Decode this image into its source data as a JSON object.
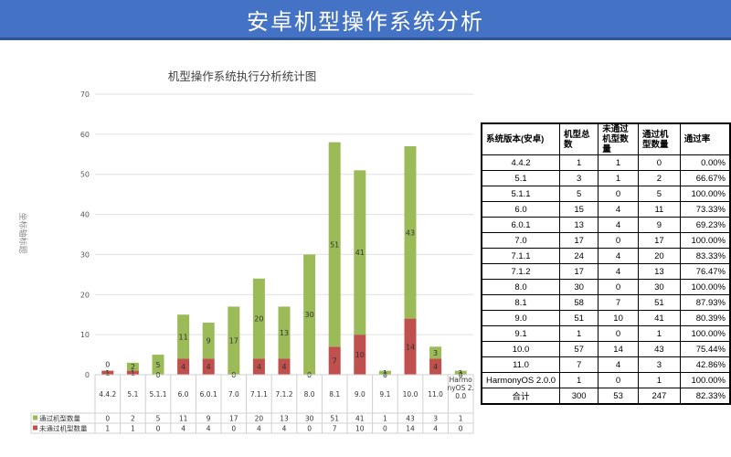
{
  "page": {
    "title": "安卓机型操作系统分析"
  },
  "chart_data": {
    "type": "bar",
    "stacked": true,
    "title": "机型操作系统执行分析统计图",
    "ylabel": "坐标轴标题",
    "xlabel": "",
    "ylim": [
      0,
      70
    ],
    "yticks": [
      0,
      10,
      20,
      30,
      40,
      50,
      60,
      70
    ],
    "grid": true,
    "categories": [
      "4.4.2",
      "5.1",
      "5.1.1",
      "6.0",
      "6.0.1",
      "7.0",
      "7.1.1",
      "7.1.2",
      "8.0",
      "8.1",
      "9.0",
      "9.1",
      "10.0",
      "11.0",
      "HarmonyOS 2.0.0"
    ],
    "category_labels": [
      "4.4.2",
      "5.1",
      "5.1.1",
      "6.0",
      "6.0.1",
      "7.0",
      "7.1.1",
      "7.1.2",
      "8.0",
      "8.1",
      "9.0",
      "9.1",
      "10.0",
      "11.0",
      "HarmonyOS 2.0.0"
    ],
    "series": [
      {
        "name": "未通过机型数量",
        "color": "#c0504d",
        "values": [
          1,
          1,
          0,
          4,
          4,
          0,
          4,
          4,
          0,
          7,
          10,
          0,
          14,
          4,
          0
        ]
      },
      {
        "name": "通过机型数量",
        "color": "#9bbb59",
        "values": [
          0,
          2,
          5,
          11,
          9,
          17,
          20,
          13,
          30,
          51,
          41,
          1,
          43,
          3,
          1
        ]
      }
    ]
  },
  "table": {
    "headers": [
      "系统版本(安卓)",
      "机型总数",
      "未通过机型数量",
      "通过机型数量",
      "通过率"
    ],
    "rows": [
      [
        "4.4.2",
        "1",
        "1",
        "0",
        "0.00%"
      ],
      [
        "5.1",
        "3",
        "1",
        "2",
        "66.67%"
      ],
      [
        "5.1.1",
        "5",
        "0",
        "5",
        "100.00%"
      ],
      [
        "6.0",
        "15",
        "4",
        "11",
        "73.33%"
      ],
      [
        "6.0.1",
        "13",
        "4",
        "9",
        "69.23%"
      ],
      [
        "7.0",
        "17",
        "0",
        "17",
        "100.00%"
      ],
      [
        "7.1.1",
        "24",
        "4",
        "20",
        "83.33%"
      ],
      [
        "7.1.2",
        "17",
        "4",
        "13",
        "76.47%"
      ],
      [
        "8.0",
        "30",
        "0",
        "30",
        "100.00%"
      ],
      [
        "8.1",
        "58",
        "7",
        "51",
        "87.93%"
      ],
      [
        "9.0",
        "51",
        "10",
        "41",
        "80.39%"
      ],
      [
        "9.1",
        "1",
        "0",
        "1",
        "100.00%"
      ],
      [
        "10.0",
        "57",
        "14",
        "43",
        "75.44%"
      ],
      [
        "11.0",
        "7",
        "4",
        "3",
        "42.86%"
      ],
      [
        "HarmonyOS 2.0.0",
        "1",
        "0",
        "1",
        "100.00%"
      ]
    ],
    "total": [
      "合计",
      "300",
      "53",
      "247",
      "82.33%"
    ]
  }
}
